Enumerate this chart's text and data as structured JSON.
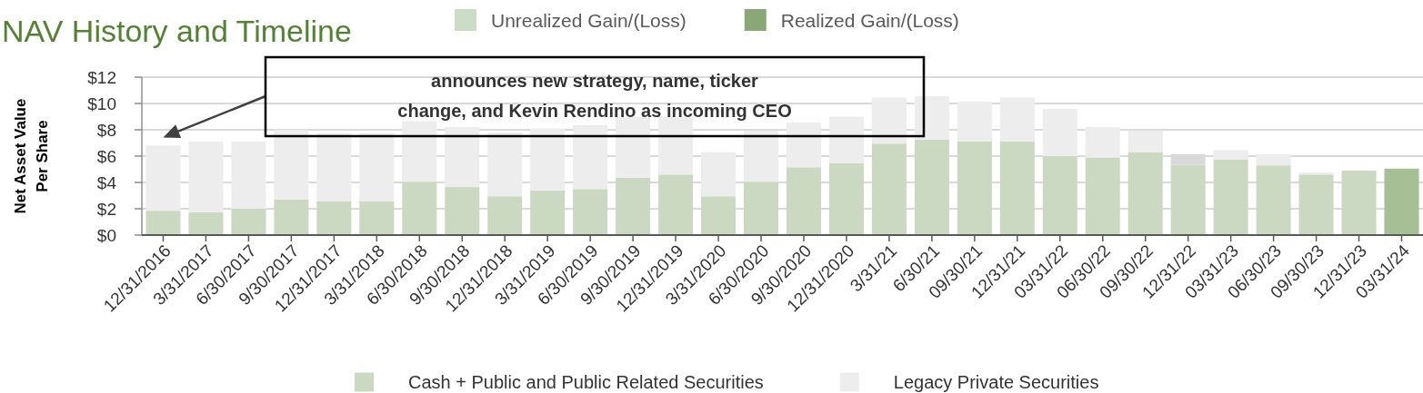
{
  "chart_data": {
    "type": "bar",
    "title": "NAV History and Timeline",
    "ylabel": "Net Asset Value Per Share",
    "categories": [
      "12/31/2016",
      "3/31/2017",
      "6/30/2017",
      "9/30/2017",
      "12/31/2017",
      "3/31/2018",
      "6/30/2018",
      "9/30/2018",
      "12/31/2018",
      "3/31/2019",
      "6/30/2019",
      "9/30/2019",
      "12/31/2019",
      "3/31/2020",
      "6/30/2020",
      "9/30/2020",
      "12/31/2020",
      "3/31/21",
      "6/30/21",
      "09/30/21",
      "12/31/21",
      "03/31/22",
      "06/30/22",
      "09/30/22",
      "12/31/22",
      "03/31/23",
      "06/30/23",
      "09/30/23",
      "12/31/23",
      "03/31/24"
    ],
    "series": [
      {
        "name": "Cash + Public and Public Related Securities",
        "color": "#ccd9c2",
        "colors": [
          "#ccd9c2",
          "#ccd9c2",
          "#ccd9c2",
          "#ccd9c2",
          "#ccd9c2",
          "#ccd9c2",
          "#ccd9c2",
          "#ccd9c2",
          "#ccd9c2",
          "#ccd9c2",
          "#ccd9c2",
          "#ccd9c2",
          "#ccd9c2",
          "#ccd9c2",
          "#ccd9c2",
          "#ccd9c2",
          "#ccd9c2",
          "#ccd9c2",
          "#ccd9c2",
          "#ccd9c2",
          "#ccd9c2",
          "#ccd9c2",
          "#ccd9c2",
          "#ccd9c2",
          "#ccd9c2",
          "#ccd9c2",
          "#ccd9c2",
          "#ccd9c2",
          "#ccd9c2",
          "#a7bf95"
        ],
        "values": [
          1.85,
          1.75,
          2.0,
          2.7,
          2.55,
          2.55,
          4.05,
          3.65,
          2.95,
          3.4,
          3.5,
          4.35,
          4.6,
          2.95,
          4.05,
          5.15,
          5.45,
          6.95,
          7.25,
          7.1,
          7.1,
          6.0,
          5.9,
          6.3,
          5.35,
          5.75,
          5.3,
          4.6,
          4.9,
          5.05
        ]
      },
      {
        "name": "Legacy Private Securities",
        "color": "#ededed",
        "colors": [
          "#ededed",
          "#ededed",
          "#ededed",
          "#ededed",
          "#ededed",
          "#ededed",
          "#ededed",
          "#ededed",
          "#ededed",
          "#ededed",
          "#ededed",
          "#ededed",
          "#ededed",
          "#ededed",
          "#ededed",
          "#ededed",
          "#ededed",
          "#ededed",
          "#ededed",
          "#ededed",
          "#ededed",
          "#ededed",
          "#ededed",
          "#ededed",
          "#d9d9d9",
          "#ededed",
          "#ededed",
          "#ededed",
          null,
          null
        ],
        "values": [
          4.95,
          5.35,
          5.1,
          5.3,
          5.2,
          5.2,
          4.6,
          4.55,
          4.85,
          4.7,
          4.85,
          4.65,
          4.4,
          3.35,
          3.9,
          3.4,
          3.55,
          3.5,
          3.3,
          3.05,
          3.35,
          3.6,
          2.3,
          1.65,
          0.8,
          0.7,
          0.85,
          0.15,
          null,
          null
        ]
      },
      {
        "name": "Unrealized Gain/(Loss)",
        "color": "#cddcc4",
        "values": [
          null,
          null,
          null,
          null,
          null,
          null,
          null,
          null,
          null,
          null,
          null,
          null,
          null,
          null,
          null,
          null,
          null,
          null,
          null,
          null,
          null,
          null,
          null,
          null,
          null,
          null,
          null,
          null,
          null,
          null
        ]
      },
      {
        "name": "Realized Gain/(Loss)",
        "color": "#8aa776",
        "values": [
          null,
          null,
          null,
          null,
          null,
          null,
          null,
          null,
          null,
          null,
          null,
          null,
          null,
          null,
          null,
          null,
          null,
          null,
          null,
          null,
          null,
          null,
          null,
          null,
          null,
          null,
          null,
          null,
          null,
          null
        ]
      }
    ],
    "stacked": true,
    "ylim": [
      0,
      12
    ],
    "yticks": [
      {
        "value": 0,
        "label": "$0"
      },
      {
        "value": 2,
        "label": "$2"
      },
      {
        "value": 4,
        "label": "$4"
      },
      {
        "value": 6,
        "label": "$6"
      },
      {
        "value": 8,
        "label": "$8"
      },
      {
        "value": 10,
        "label": "$10"
      },
      {
        "value": 12,
        "label": "$12"
      }
    ],
    "grid": "y",
    "legend": "bottom",
    "annotations": [
      "announces new strategy, name, ticker change, and Kevin Rendino as incoming CEO"
    ]
  }
}
